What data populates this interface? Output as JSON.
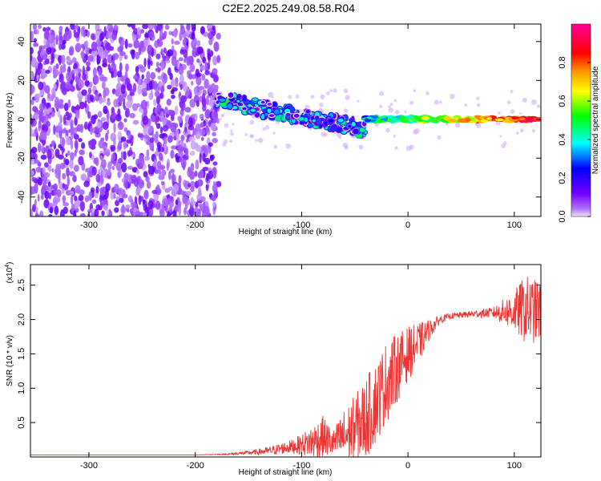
{
  "title": "C2E2.2025.249.08.58.R04",
  "chart_data": [
    {
      "type": "heatmap",
      "xlabel": "Height of straight line (km)",
      "ylabel": "Frequency (Hz)",
      "xlim": [
        -355,
        125
      ],
      "ylim": [
        -50,
        49
      ],
      "x_ticks": [
        -300,
        -200,
        -100,
        0,
        100
      ],
      "y_ticks": [
        -40,
        -20,
        0,
        20,
        40
      ],
      "colorbar": {
        "label": "Normalized spectral amplitude",
        "range": [
          0,
          1
        ],
        "ticks": [
          0.0,
          0.2,
          0.4,
          0.6,
          0.8
        ],
        "colors": [
          "#e8e0ff",
          "#8800ff",
          "#0000ff",
          "#00ffff",
          "#00ff00",
          "#ffff00",
          "#ff8800",
          "#ff0000",
          "#ff0088"
        ]
      },
      "regions": [
        {
          "x": [
            -355,
            -178
          ],
          "y": [
            -50,
            49
          ],
          "amplitude": 0.12
        },
        {
          "x": [
            -180,
            -40
          ],
          "freq_start": 10,
          "freq_end": -5,
          "amplitude": 0.4
        },
        {
          "x": [
            -40,
            125
          ],
          "freq": 0,
          "amplitude": 0.85
        }
      ]
    },
    {
      "type": "line",
      "xlabel": "Height of straight line (km)",
      "ylabel": "SNR (10 * v/v)",
      "y_multiplier": "(x10",
      "y_multiplier_exp": "4",
      "y_multiplier_close": ")",
      "xlim": [
        -355,
        125
      ],
      "ylim": [
        0,
        2.8
      ],
      "x_ticks": [
        -300,
        -200,
        -100,
        0,
        100
      ],
      "y_ticks": [
        0.5,
        1.0,
        1.5,
        2.0,
        2.5
      ],
      "y_tick_labels": [
        "0.5",
        "1.0",
        "1.5",
        "2.0",
        "2.5"
      ],
      "series": [
        {
          "color": "#ee3333",
          "x": [
            -355,
            -300,
            -250,
            -200,
            -170,
            -150,
            -130,
            -110,
            -100,
            -90,
            -80,
            -70,
            -60,
            -50,
            -40,
            -30,
            -20,
            -10,
            0,
            10,
            20,
            30,
            40,
            60,
            80,
            100,
            110,
            125
          ],
          "y": [
            0.03,
            0.03,
            0.03,
            0.03,
            0.04,
            0.06,
            0.09,
            0.15,
            0.18,
            0.22,
            0.3,
            0.2,
            0.3,
            0.4,
            0.55,
            0.8,
            1.1,
            1.3,
            1.5,
            1.65,
            1.85,
            2.0,
            2.05,
            2.08,
            2.1,
            2.12,
            2.15,
            2.1
          ],
          "noise": [
            0.0,
            0.0,
            0.0,
            0.0,
            0.01,
            0.03,
            0.06,
            0.1,
            0.15,
            0.25,
            0.3,
            0.2,
            0.4,
            0.5,
            0.6,
            0.6,
            0.6,
            0.5,
            0.4,
            0.3,
            0.15,
            0.06,
            0.04,
            0.05,
            0.08,
            0.3,
            0.5,
            0.45
          ]
        }
      ]
    }
  ]
}
